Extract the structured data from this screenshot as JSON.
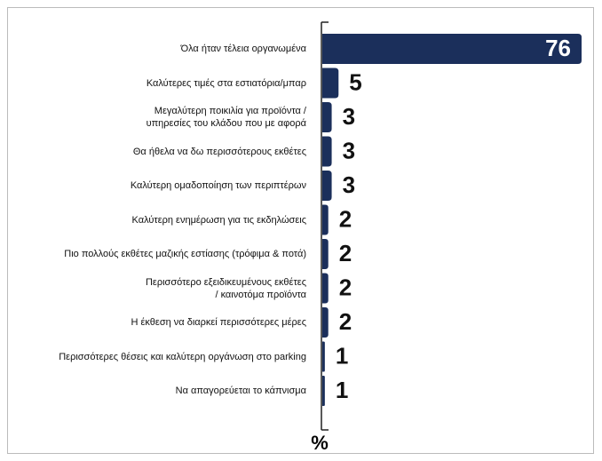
{
  "chart_data": {
    "type": "bar",
    "orientation": "horizontal",
    "categories": [
      "Όλα ήταν τέλεια οργανωμένα",
      "Καλύτερες τιμές στα εστιατόρια/μπαρ",
      "Μεγαλύτερη ποικιλία για προϊόντα /\nυπηρεσίες του κλάδου που με αφορά",
      "Θα ήθελα να δω περισσότερους εκθέτες",
      "Καλύτερη ομαδοποίηση των περιπτέρων",
      "Καλύτερη ενημέρωση για τις εκδηλώσεις",
      "Πιο πολλούς εκθέτες μαζικής εστίασης (τρόφιμα & ποτά)",
      "Περισσότερο εξειδικευμένους εκθέτες\n/ καινοτόμα προϊόντα",
      "Η έκθεση να διαρκεί περισσότερες μέρες",
      "Περισσότερες θέσεις και καλύτερη οργάνωση στο parking",
      "Να απαγορεύεται το κάπνισμα"
    ],
    "values": [
      76,
      5,
      3,
      3,
      3,
      2,
      2,
      2,
      2,
      1,
      1
    ],
    "color": "#1b2f5b",
    "xlim": [
      0,
      76
    ],
    "xlabel": "%"
  }
}
